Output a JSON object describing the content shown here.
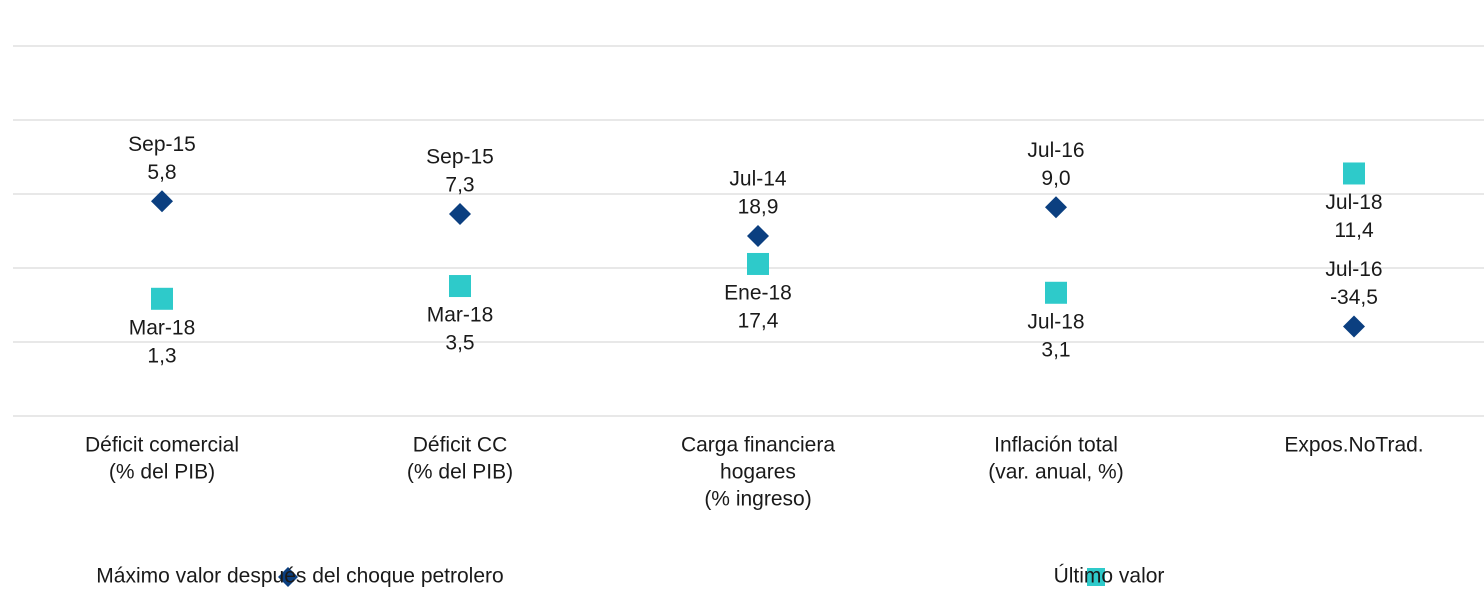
{
  "chart_data": {
    "type": "dot",
    "categories": [
      [
        "Déficit comercial",
        "(% del PIB)"
      ],
      [
        "Déficit CC",
        "(% del PIB)"
      ],
      [
        "Carga financiera",
        "hogares",
        "(% ingreso)"
      ],
      [
        "Inflación total",
        "(var. anual, %)"
      ],
      [
        "Expos.NoTrad."
      ]
    ],
    "series": [
      {
        "name": "Máximo valor después del choque petrolero",
        "color": "#0b3f80",
        "marker": "diamond",
        "label_color": "#1a1a1a",
        "values": [
          5.8,
          7.3,
          18.9,
          9.0,
          -34.5
        ],
        "value_labels": [
          "5,8",
          "7,3",
          "18,9",
          "9,0",
          "-34,5"
        ],
        "dates": [
          "Sep-15",
          "Sep-15",
          "Jul-14",
          "Jul-16",
          "Jul-16"
        ]
      },
      {
        "name": "Último valor",
        "color": "#2ecaca",
        "marker": "square",
        "label_color": "#1a7fc1",
        "values": [
          1.3,
          3.5,
          17.4,
          3.1,
          11.4
        ],
        "value_labels": [
          "1,3",
          "3,5",
          "17,4",
          "3,1",
          "11,4"
        ],
        "dates": [
          "Mar-18",
          "Mar-18",
          "Ene-18",
          "Jul-18",
          "Jul-18"
        ]
      }
    ],
    "legend": "bottom"
  }
}
